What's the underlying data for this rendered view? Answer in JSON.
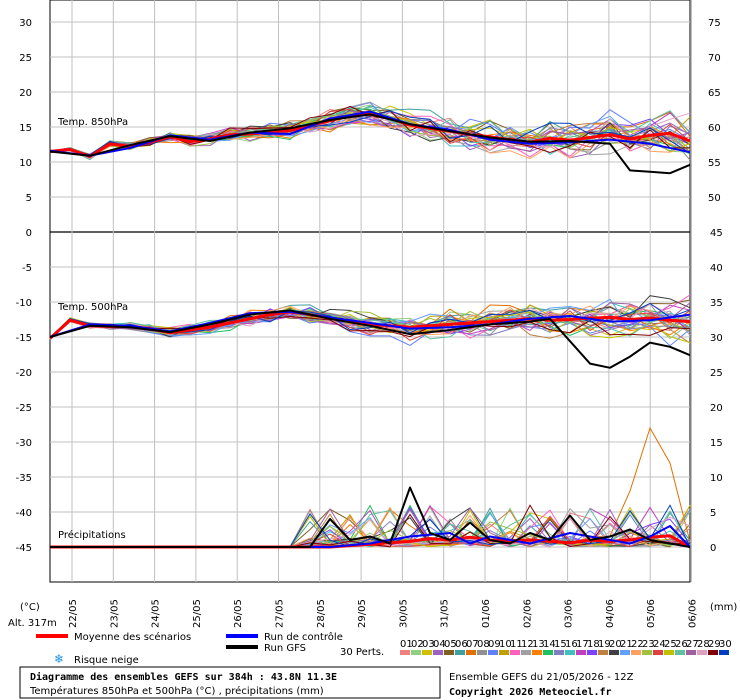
{
  "chart_data": {
    "type": "line",
    "title": "Diagramme des ensembles GEFS sur 384h : 43.8N 11.3E",
    "subtitle": "Températures 850hPa et 500hPa (°C) , précipitations (mm)",
    "run_info": "Ensemble GEFS du 21/05/2026 - 12Z",
    "copyright": "Copyright 2026 Meteociel.fr",
    "altitude": "Alt. 317m",
    "left_unit": "(°C)",
    "right_unit": "(mm)",
    "x_dates": [
      "22/05",
      "23/05",
      "24/05",
      "25/05",
      "26/05",
      "27/05",
      "28/05",
      "29/05",
      "30/05",
      "31/05",
      "01/06",
      "02/06",
      "03/06",
      "04/06",
      "05/06",
      "06/06"
    ],
    "left_ticks": [
      "30",
      "25",
      "20",
      "15",
      "10",
      "5",
      "0",
      "-5",
      "-10",
      "-15",
      "-20",
      "-25",
      "-30",
      "-35",
      "-40",
      "-45"
    ],
    "right_ticks_top": [
      "75",
      "70",
      "65",
      "60",
      "55",
      "50"
    ],
    "right_ticks_bottom": [
      "45",
      "40",
      "35",
      "30",
      "25",
      "20",
      "15",
      "10",
      "5",
      "0"
    ],
    "panels": {
      "t850_label": "Temp. 850hPa",
      "t500_label": "Temp. 500hPa",
      "precip_label": "Précipitations"
    },
    "legend": {
      "mean": "Moyenne des scénarios",
      "control": "Run de contrôle",
      "gfs": "Run GFS",
      "snow": "Risque neige",
      "perts": "30 Perts.",
      "pert_numbers": [
        "01",
        "02",
        "03",
        "04",
        "05",
        "06",
        "07",
        "08",
        "09",
        "10",
        "11",
        "12",
        "13",
        "14",
        "15",
        "16",
        "17",
        "18",
        "19",
        "20",
        "21",
        "22",
        "23",
        "24",
        "25",
        "26",
        "27",
        "28",
        "29",
        "30"
      ],
      "pert_colors": [
        "#f08080",
        "#90d080",
        "#d0c000",
        "#a060c0",
        "#806020",
        "#40a0a0",
        "#e07000",
        "#909090",
        "#6080ff",
        "#c0a000",
        "#ff60c0",
        "#a0a0a0",
        "#ff8000",
        "#20c060",
        "#8080c0",
        "#40c0c0",
        "#c040c0",
        "#8040ff",
        "#c08040",
        "#404040",
        "#60a0ff",
        "#ffa060",
        "#a0c040",
        "#e04040",
        "#c0c000",
        "#60c0a0",
        "#a060a0",
        "#e0a0c0",
        "#800000",
        "#0040c0"
      ]
    },
    "colors": {
      "mean": "#ff0000",
      "control": "#0000ff",
      "gfs": "#000000",
      "grid": "#c0c0c0"
    },
    "series": [
      {
        "name": "Moyenne des scénarios",
        "panel": "t850",
        "x_hours": [
          0,
          12,
          24,
          36,
          48,
          60,
          72,
          84,
          96,
          108,
          120,
          132,
          144,
          156,
          168,
          180,
          192,
          204,
          216,
          228,
          240,
          252,
          264,
          276,
          288,
          300,
          312,
          324,
          336,
          348,
          360,
          372,
          384
        ],
        "values": [
          11.5,
          11.8,
          10.8,
          12.6,
          12.2,
          12.8,
          13.6,
          12.9,
          13.3,
          13.9,
          14.0,
          14.3,
          14.5,
          15.2,
          15.9,
          16.6,
          16.8,
          16.2,
          15.3,
          14.8,
          14.4,
          13.9,
          13.6,
          13.2,
          12.8,
          13.4,
          13.1,
          13.5,
          13.9,
          13.3,
          13.8,
          14.1,
          13.0
        ]
      },
      {
        "name": "Run de contrôle",
        "panel": "t850",
        "x_hours": [
          0,
          24,
          48,
          72,
          96,
          120,
          144,
          168,
          192,
          216,
          240,
          264,
          288,
          312,
          336,
          360,
          384
        ],
        "values": [
          11.6,
          10.9,
          12.0,
          13.8,
          13.2,
          14.2,
          14.0,
          16.2,
          17.2,
          15.4,
          14.6,
          13.2,
          12.6,
          12.8,
          13.2,
          12.6,
          11.4
        ]
      },
      {
        "name": "Run GFS",
        "panel": "t850",
        "x_hours": [
          0,
          24,
          48,
          72,
          96,
          120,
          144,
          168,
          192,
          216,
          240,
          264,
          288,
          312,
          336,
          348,
          360,
          372,
          384
        ],
        "values": [
          11.5,
          10.9,
          12.4,
          13.7,
          13.0,
          14.2,
          14.8,
          16.0,
          16.8,
          15.4,
          14.4,
          13.5,
          12.9,
          13.0,
          12.6,
          8.8,
          8.6,
          8.4,
          9.6
        ]
      },
      {
        "name": "Moyenne des scénarios",
        "panel": "t500",
        "x_hours": [
          0,
          12,
          24,
          36,
          48,
          60,
          72,
          84,
          96,
          108,
          120,
          132,
          144,
          156,
          168,
          180,
          192,
          204,
          216,
          228,
          240,
          252,
          264,
          276,
          288,
          300,
          312,
          324,
          336,
          348,
          360,
          372,
          384
        ],
        "values": [
          -15.2,
          -12.6,
          -13.4,
          -13.5,
          -13.5,
          -13.8,
          -14.4,
          -14.0,
          -13.6,
          -13.0,
          -12.4,
          -11.8,
          -11.4,
          -11.8,
          -12.3,
          -12.7,
          -13.2,
          -13.4,
          -13.6,
          -13.4,
          -13.2,
          -13.0,
          -12.8,
          -12.6,
          -12.4,
          -12.6,
          -12.5,
          -12.3,
          -12.2,
          -12.5,
          -12.3,
          -12.6,
          -12.8
        ]
      },
      {
        "name": "Run de contrôle",
        "panel": "t500",
        "x_hours": [
          0,
          24,
          48,
          72,
          96,
          120,
          144,
          168,
          192,
          216,
          240,
          264,
          288,
          312,
          336,
          360,
          384
        ],
        "values": [
          -15.0,
          -13.2,
          -13.4,
          -14.2,
          -13.0,
          -11.6,
          -11.4,
          -12.2,
          -13.0,
          -13.8,
          -13.6,
          -13.2,
          -12.4,
          -12.0,
          -12.8,
          -12.6,
          -11.8
        ]
      },
      {
        "name": "Run GFS",
        "panel": "t500",
        "x_hours": [
          0,
          24,
          48,
          72,
          96,
          120,
          144,
          168,
          192,
          216,
          240,
          264,
          288,
          300,
          312,
          324,
          336,
          348,
          360,
          372,
          384
        ],
        "values": [
          -15.0,
          -13.4,
          -13.6,
          -14.3,
          -13.2,
          -11.8,
          -11.2,
          -12.4,
          -13.4,
          -14.6,
          -14.0,
          -13.2,
          -12.8,
          -12.4,
          -15.6,
          -18.8,
          -19.4,
          -17.8,
          -15.8,
          -16.4,
          -17.6
        ]
      },
      {
        "name": "Moyenne des scénarios",
        "panel": "precip",
        "x_hours": [
          0,
          24,
          48,
          72,
          96,
          120,
          144,
          168,
          180,
          192,
          204,
          216,
          228,
          240,
          252,
          264,
          276,
          288,
          300,
          312,
          324,
          336,
          348,
          360,
          372,
          384
        ],
        "values": [
          0,
          0,
          0,
          0,
          0,
          0,
          0,
          0,
          0.2,
          0.4,
          0.6,
          0.8,
          1.2,
          1.0,
          1.4,
          1.0,
          0.8,
          1.0,
          0.8,
          0.6,
          1.0,
          0.8,
          1.0,
          1.4,
          1.6,
          0
        ]
      },
      {
        "name": "Run de contrôle",
        "panel": "precip",
        "x_hours": [
          0,
          168,
          192,
          216,
          240,
          252,
          264,
          288,
          312,
          336,
          348,
          360,
          372,
          384
        ],
        "values": [
          0,
          0,
          0.5,
          1.5,
          2.0,
          0.5,
          1.5,
          0.5,
          2.0,
          1.0,
          0.5,
          1.5,
          3.0,
          0
        ]
      },
      {
        "name": "Run GFS",
        "panel": "precip",
        "x_hours": [
          0,
          156,
          168,
          180,
          192,
          204,
          216,
          228,
          240,
          252,
          264,
          276,
          288,
          300,
          312,
          324,
          336,
          348,
          360,
          372,
          384
        ],
        "values": [
          0,
          0,
          4.0,
          1.0,
          1.5,
          0.5,
          8.5,
          2.0,
          1.0,
          3.5,
          1.0,
          0.5,
          2.0,
          1.0,
          4.5,
          1.0,
          1.5,
          2.5,
          1.0,
          0.5,
          0
        ]
      }
    ]
  }
}
